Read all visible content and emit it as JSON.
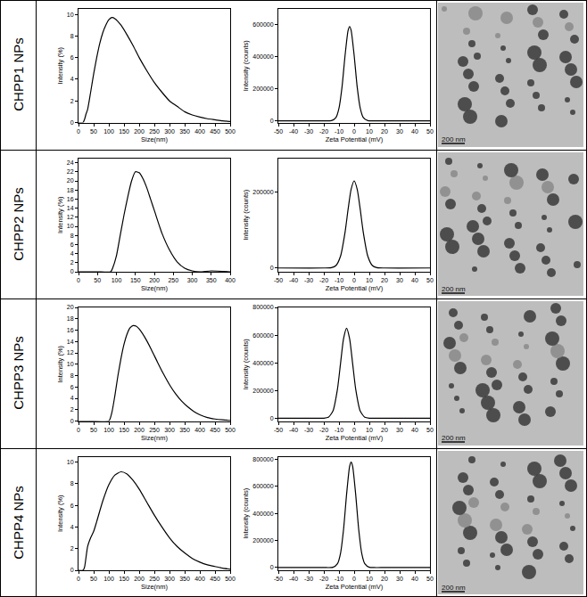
{
  "chart_data": [
    {
      "type": "line",
      "color": "#000000",
      "grid": false,
      "xlabel": "Size(nm)",
      "ylabel": "Intensity (%)",
      "x": [
        0,
        15,
        20,
        25,
        30,
        40,
        50,
        60,
        70,
        80,
        90,
        100,
        110,
        120,
        140,
        160,
        180,
        200,
        225,
        250,
        275,
        300,
        325,
        350,
        375,
        400,
        425,
        450,
        475,
        500
      ],
      "values": [
        0,
        0,
        0.3,
        0.8,
        1.2,
        2.8,
        4.5,
        6.0,
        7.3,
        8.3,
        9.0,
        9.5,
        9.7,
        9.6,
        9.0,
        8.1,
        7.1,
        6.0,
        4.8,
        3.7,
        2.8,
        2.0,
        1.5,
        1.0,
        0.7,
        0.5,
        0.35,
        0.25,
        0.15,
        0.1
      ],
      "xlim": [
        0,
        500
      ],
      "xticks": [
        0,
        50,
        100,
        150,
        200,
        250,
        300,
        350,
        400,
        450,
        500
      ],
      "ylim": [
        0,
        10.5
      ],
      "yticks": [
        0,
        2,
        4,
        6,
        8,
        10
      ]
    },
    {
      "type": "line",
      "color": "#000000",
      "grid": false,
      "xlabel": "Zeta Potential (mV)",
      "ylabel": "Intensity (counts)",
      "x": [
        -50,
        -20,
        -15,
        -12,
        -10,
        -8,
        -6,
        -4,
        -3,
        -2,
        0,
        2,
        4,
        6,
        9,
        12,
        20,
        50
      ],
      "values": [
        0,
        0,
        1700,
        21600,
        79800,
        212000,
        409000,
        566000,
        590000,
        566000,
        409000,
        212000,
        79800,
        21600,
        1700,
        0,
        0,
        0
      ],
      "xlim": [
        -50,
        50
      ],
      "xticks": [
        -50,
        -40,
        -30,
        -20,
        -10,
        0,
        10,
        20,
        30,
        40,
        50
      ],
      "ylim": [
        -10000,
        700000
      ],
      "yticks": [
        0,
        200000,
        400000,
        600000
      ]
    },
    {
      "type": "line",
      "color": "#000000",
      "grid": false,
      "xlabel": "Size(nm)",
      "ylabel": "Intensity (%)",
      "x": [
        0,
        50,
        85,
        90,
        100,
        110,
        120,
        130,
        140,
        150,
        160,
        170,
        180,
        190,
        200,
        220,
        240,
        260,
        280,
        300,
        320,
        350,
        400
      ],
      "values": [
        0,
        0,
        0,
        0.8,
        3.5,
        8,
        12.5,
        16.5,
        20,
        22,
        21.8,
        20.5,
        18.5,
        16,
        13.5,
        8.5,
        4.8,
        2.2,
        0.8,
        0.2,
        0,
        0.2,
        0
      ],
      "xlim": [
        0,
        400
      ],
      "xticks": [
        0,
        50,
        100,
        150,
        200,
        250,
        300,
        350,
        400
      ],
      "ylim": [
        0,
        25
      ],
      "yticks": [
        0,
        2,
        4,
        6,
        8,
        10,
        12,
        14,
        16,
        18,
        20,
        22,
        24
      ]
    },
    {
      "type": "line",
      "color": "#000000",
      "grid": false,
      "xlabel": "Zeta Potential (mV)",
      "ylabel": "Intensity (counts)",
      "x": [
        -50,
        -20,
        -15,
        -12,
        -9,
        -6,
        -4,
        -2,
        0,
        2,
        4,
        6,
        9,
        12,
        15,
        20,
        50
      ],
      "values": [
        0,
        0,
        900,
        6500,
        31100,
        94500,
        155000,
        208000,
        230000,
        208000,
        155000,
        94500,
        31100,
        6500,
        900,
        0,
        0
      ],
      "xlim": [
        -50,
        50
      ],
      "xticks": [
        -50,
        -40,
        -30,
        -20,
        -10,
        0,
        10,
        20,
        30,
        40,
        50
      ],
      "ylim": [
        -10000,
        290000
      ],
      "yticks": [
        0,
        200000
      ]
    },
    {
      "type": "line",
      "color": "#000000",
      "grid": false,
      "xlabel": "Size(nm)",
      "ylabel": "Intensity (%)",
      "x": [
        0,
        50,
        100,
        110,
        120,
        130,
        140,
        150,
        160,
        170,
        180,
        190,
        200,
        220,
        240,
        260,
        280,
        300,
        320,
        340,
        360,
        380,
        400,
        425,
        450,
        475,
        500
      ],
      "values": [
        0,
        0,
        0,
        1.5,
        4.5,
        8,
        11,
        13.5,
        15.3,
        16.4,
        16.8,
        16.7,
        16.2,
        14.6,
        12.6,
        10.4,
        8.3,
        6.4,
        4.8,
        3.5,
        2.5,
        1.7,
        1.1,
        0.6,
        0.35,
        0.2,
        0.1
      ],
      "xlim": [
        0,
        500
      ],
      "xticks": [
        0,
        50,
        100,
        150,
        200,
        250,
        300,
        350,
        400,
        450,
        500
      ],
      "ylim": [
        0,
        20
      ],
      "yticks": [
        0,
        2,
        4,
        6,
        8,
        10,
        12,
        14,
        16,
        18,
        20
      ]
    },
    {
      "type": "line",
      "color": "#000000",
      "grid": false,
      "xlabel": "Zeta Potential (mV)",
      "ylabel": "Intensity (counts)",
      "x": [
        -50,
        -25,
        -20,
        -17,
        -14,
        -11,
        -9,
        -7,
        -5,
        -3,
        -1,
        1,
        4,
        7,
        10,
        15,
        50
      ],
      "values": [
        0,
        0,
        570,
        7200,
        51700,
        211000,
        394000,
        574000,
        650000,
        574000,
        394000,
        211000,
        51700,
        7200,
        570,
        0,
        0
      ],
      "xlim": [
        -50,
        50
      ],
      "xticks": [
        -50,
        -40,
        -30,
        -20,
        -10,
        0,
        10,
        20,
        30,
        40,
        50
      ],
      "ylim": [
        -20000,
        800000
      ],
      "yticks": [
        0,
        200000,
        400000,
        600000,
        800000
      ]
    },
    {
      "type": "line",
      "color": "#000000",
      "grid": false,
      "xlabel": "Size(nm)",
      "ylabel": "Intensity (%)",
      "x": [
        0,
        15,
        20,
        30,
        40,
        50,
        60,
        80,
        100,
        120,
        140,
        160,
        180,
        200,
        225,
        250,
        275,
        300,
        325,
        350,
        375,
        400,
        425,
        450,
        475,
        500
      ],
      "values": [
        0,
        0,
        0.3,
        2.2,
        3.0,
        3.6,
        4.5,
        6.4,
        7.9,
        8.8,
        9.1,
        8.9,
        8.3,
        7.5,
        6.3,
        5.1,
        4.0,
        3.0,
        2.2,
        1.6,
        1.1,
        0.75,
        0.5,
        0.35,
        0.2,
        0.1
      ],
      "xlim": [
        0,
        500
      ],
      "xticks": [
        0,
        50,
        100,
        150,
        200,
        250,
        300,
        350,
        400,
        450,
        500
      ],
      "ylim": [
        0,
        10.5
      ],
      "yticks": [
        0,
        2,
        4,
        6,
        8,
        10
      ]
    },
    {
      "type": "line",
      "color": "#000000",
      "grid": false,
      "xlabel": "Zeta Potential (mV)",
      "ylabel": "Intensity (counts)",
      "x": [
        -50,
        -20,
        -14,
        -11,
        -9,
        -7,
        -5,
        -3,
        -2,
        -1,
        1,
        3,
        5,
        7,
        10,
        13,
        20,
        50
      ],
      "values": [
        0,
        0,
        2200,
        28600,
        105000,
        281000,
        541000,
        749000,
        780000,
        749000,
        541000,
        281000,
        105000,
        28600,
        2200,
        0,
        0,
        0
      ],
      "xlim": [
        -50,
        50
      ],
      "xticks": [
        -50,
        -40,
        -30,
        -20,
        -10,
        0,
        10,
        20,
        30,
        40,
        50
      ],
      "ylim": [
        -20000,
        820000
      ],
      "yticks": [
        0,
        200000,
        400000,
        600000,
        800000
      ]
    }
  ],
  "row_labels": [
    "CHPP1 NPs",
    "CHPP2 NPs",
    "CHPP3 NPs",
    "CHPP4 NPs"
  ],
  "tem_images": [
    {
      "scale_bar": "200 nm"
    },
    {
      "scale_bar": "200 nm"
    },
    {
      "scale_bar": "200 nm"
    },
    {
      "scale_bar": "200 nm"
    }
  ]
}
